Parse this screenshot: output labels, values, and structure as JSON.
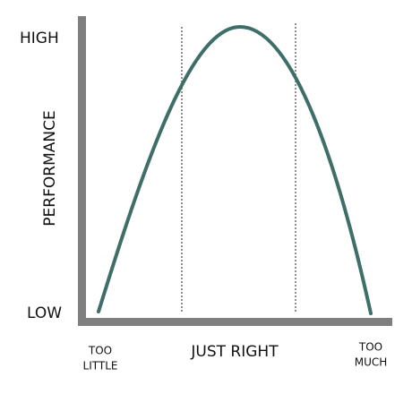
{
  "axis": {
    "y_high": "HIGH",
    "y_low": "LOW",
    "y_label": "PERFORMANCE"
  },
  "x_labels": {
    "left": [
      "TOO",
      "LITTLE"
    ],
    "center": "JUST RIGHT",
    "right": [
      "TOO",
      "MUCH"
    ]
  }
}
